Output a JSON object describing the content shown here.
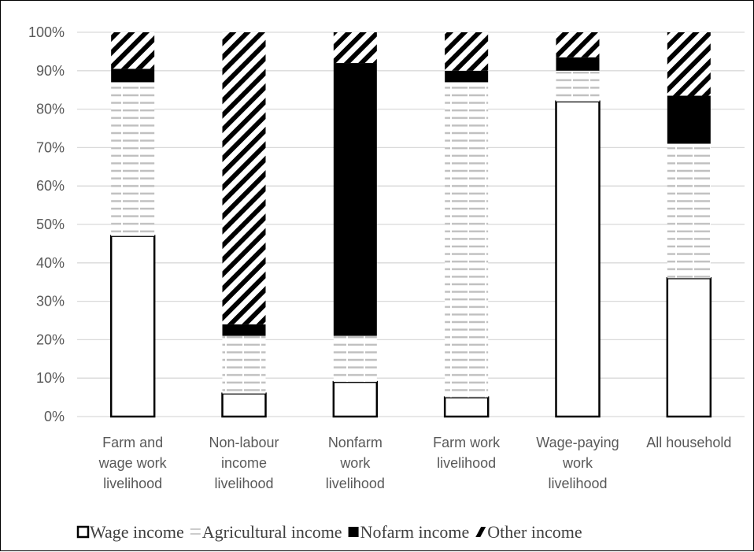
{
  "chart_data": {
    "type": "bar",
    "stacked": true,
    "percent_stacked": true,
    "title": "",
    "xlabel": "",
    "ylabel": "",
    "ylim": [
      0,
      100
    ],
    "ytick_labels": [
      "0%",
      "10%",
      "20%",
      "30%",
      "40%",
      "50%",
      "60%",
      "70%",
      "80%",
      "90%",
      "100%"
    ],
    "grid": true,
    "legend_position": "bottom",
    "categories": [
      [
        "Farm and",
        "wage work",
        "livelihood"
      ],
      [
        "Non-labour",
        "income",
        "livelihood"
      ],
      [
        "Nonfarm",
        "work",
        "livelihood"
      ],
      [
        "Farm work",
        "livelihood"
      ],
      [
        "Wage-paying",
        "work",
        "livelihood"
      ],
      [
        "All household"
      ]
    ],
    "series": [
      {
        "name": "Wage income",
        "pattern": "white",
        "values": [
          47,
          6,
          9,
          5,
          82,
          36
        ]
      },
      {
        "name": "Agricultural income",
        "pattern": "horizontal-dashes",
        "values": [
          40,
          15,
          12,
          82,
          8,
          35
        ]
      },
      {
        "name": "Nofarm income",
        "pattern": "solid-black",
        "values": [
          3.5,
          3,
          71,
          3,
          3.5,
          12.5
        ]
      },
      {
        "name": "Other income",
        "pattern": "diagonal-stripes",
        "values": [
          9.5,
          76,
          8,
          10,
          6.5,
          16.5
        ]
      }
    ],
    "colors": {
      "axis": "#d9d9d9",
      "grid": "#d9d9d9",
      "bar_edge": "#000000",
      "dash": "#bfbfbf",
      "text": "#595959"
    }
  }
}
